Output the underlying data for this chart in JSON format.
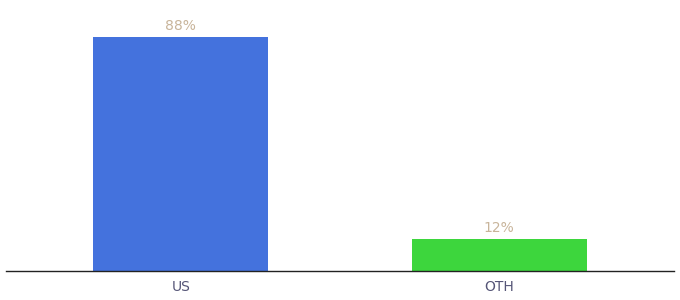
{
  "categories": [
    "US",
    "OTH"
  ],
  "values": [
    88,
    12
  ],
  "bar_colors": [
    "#4472DD",
    "#3DD63D"
  ],
  "label_color": "#c8b49a",
  "value_labels": [
    "88%",
    "12%"
  ],
  "ylim": [
    0,
    100
  ],
  "background_color": "#ffffff",
  "label_fontsize": 10,
  "tick_fontsize": 10,
  "bar_width": 0.55,
  "xlim": [
    -0.55,
    1.55
  ],
  "x_positions": [
    0,
    1
  ]
}
